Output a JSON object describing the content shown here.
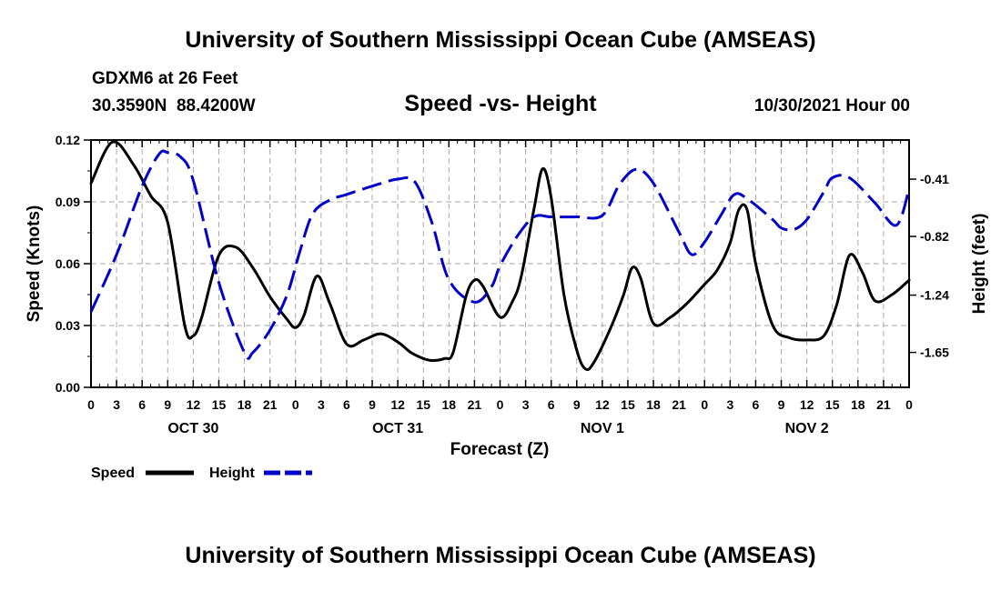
{
  "header": {
    "title": "University of Southern Mississippi Ocean Cube (AMSEAS)",
    "station": "GDXM6 at 26 Feet",
    "coords": "30.3590N  88.4200W",
    "subtitle": "Speed -vs- Height",
    "datestamp": "10/30/2021 Hour 00"
  },
  "footer": {
    "title": "University of Southern Mississippi Ocean Cube (AMSEAS)"
  },
  "chart_data": {
    "type": "line",
    "title": "Speed -vs- Height",
    "xlabel": "Forecast (Z)",
    "ylabel": "Speed (Knots)",
    "y2label": "Height (feet)",
    "xlim": [
      0,
      96
    ],
    "ylim": [
      0,
      0.12
    ],
    "y2lim": [
      -1.9,
      -0.13
    ],
    "x_tick_labels": [
      "0",
      "3",
      "6",
      "9",
      "12",
      "15",
      "18",
      "21",
      "0",
      "3",
      "6",
      "9",
      "12",
      "15",
      "18",
      "21",
      "0",
      "3",
      "6",
      "9",
      "12",
      "15",
      "18",
      "21",
      "0",
      "3",
      "6",
      "9",
      "12",
      "15",
      "18",
      "21",
      "0"
    ],
    "day_labels": [
      {
        "label": "OCT 30",
        "x": 12
      },
      {
        "label": "OCT 31",
        "x": 36
      },
      {
        "label": "NOV 1",
        "x": 60
      },
      {
        "label": "NOV 2",
        "x": 84
      }
    ],
    "y_ticks": [
      "0.00",
      "0.03",
      "0.06",
      "0.09",
      "0.12"
    ],
    "y_tick_values": [
      0,
      0.03,
      0.06,
      0.09,
      0.12
    ],
    "y2_ticks": [
      "-0.41",
      "-0.82",
      "-1.24",
      "-1.65"
    ],
    "y2_tick_values": [
      -0.41,
      -0.82,
      -1.24,
      -1.65
    ],
    "grid": true,
    "legend_position": "bottom-left",
    "series": [
      {
        "name": "Speed",
        "axis": "left",
        "color": "#000000",
        "style": "solid",
        "x": [
          0,
          2.5,
          5,
          7,
          9,
          11,
          12,
          13,
          15,
          17,
          19,
          21,
          23,
          24,
          25,
          26.5,
          28,
          30,
          32,
          34,
          36,
          37.5,
          39,
          40,
          41.5,
          42.5,
          44,
          45,
          46,
          48,
          49.5,
          50.5,
          52,
          53,
          54,
          55.5,
          57,
          58,
          59,
          61,
          62.5,
          63.5,
          64.5,
          66,
          68,
          70,
          72,
          73.5,
          75,
          76,
          77,
          78,
          80,
          82,
          84,
          86,
          87.5,
          89,
          90.5,
          92,
          94,
          96
        ],
        "values": [
          0.099,
          0.119,
          0.108,
          0.093,
          0.08,
          0.03,
          0.025,
          0.034,
          0.064,
          0.068,
          0.058,
          0.044,
          0.033,
          0.029,
          0.035,
          0.054,
          0.041,
          0.021,
          0.023,
          0.026,
          0.022,
          0.017,
          0.014,
          0.013,
          0.014,
          0.017,
          0.044,
          0.052,
          0.049,
          0.034,
          0.042,
          0.054,
          0.087,
          0.106,
          0.092,
          0.045,
          0.018,
          0.009,
          0.012,
          0.029,
          0.045,
          0.058,
          0.053,
          0.031,
          0.034,
          0.041,
          0.05,
          0.057,
          0.07,
          0.086,
          0.086,
          0.06,
          0.03,
          0.024,
          0.023,
          0.025,
          0.04,
          0.064,
          0.056,
          0.042,
          0.045,
          0.052
        ]
      },
      {
        "name": "Height",
        "axis": "right",
        "color": "#0000cc",
        "style": "dashed",
        "x": [
          0,
          3,
          6,
          8,
          9,
          10.5,
          12,
          15,
          18,
          19,
          21,
          23,
          24.5,
          26,
          28,
          30,
          33,
          36,
          38,
          40,
          42,
          45,
          47,
          48,
          50,
          52,
          54,
          57,
          60,
          62,
          64,
          66,
          69,
          70.5,
          72,
          74,
          75.5,
          77,
          80,
          81,
          82.5,
          84,
          86,
          87,
          89,
          92,
          94.5,
          96
        ],
        "values": [
          -1.36,
          -0.95,
          -0.46,
          -0.23,
          -0.22,
          -0.25,
          -0.42,
          -1.15,
          -1.65,
          -1.65,
          -1.49,
          -1.24,
          -0.93,
          -0.66,
          -0.56,
          -0.52,
          -0.46,
          -0.41,
          -0.43,
          -0.72,
          -1.13,
          -1.29,
          -1.18,
          -1.03,
          -0.82,
          -0.68,
          -0.68,
          -0.68,
          -0.67,
          -0.45,
          -0.34,
          -0.44,
          -0.79,
          -0.95,
          -0.86,
          -0.66,
          -0.52,
          -0.55,
          -0.7,
          -0.76,
          -0.77,
          -0.7,
          -0.5,
          -0.4,
          -0.4,
          -0.58,
          -0.74,
          -0.48
        ]
      }
    ]
  },
  "legend": {
    "speed_label": "Speed",
    "height_label": "Height"
  }
}
